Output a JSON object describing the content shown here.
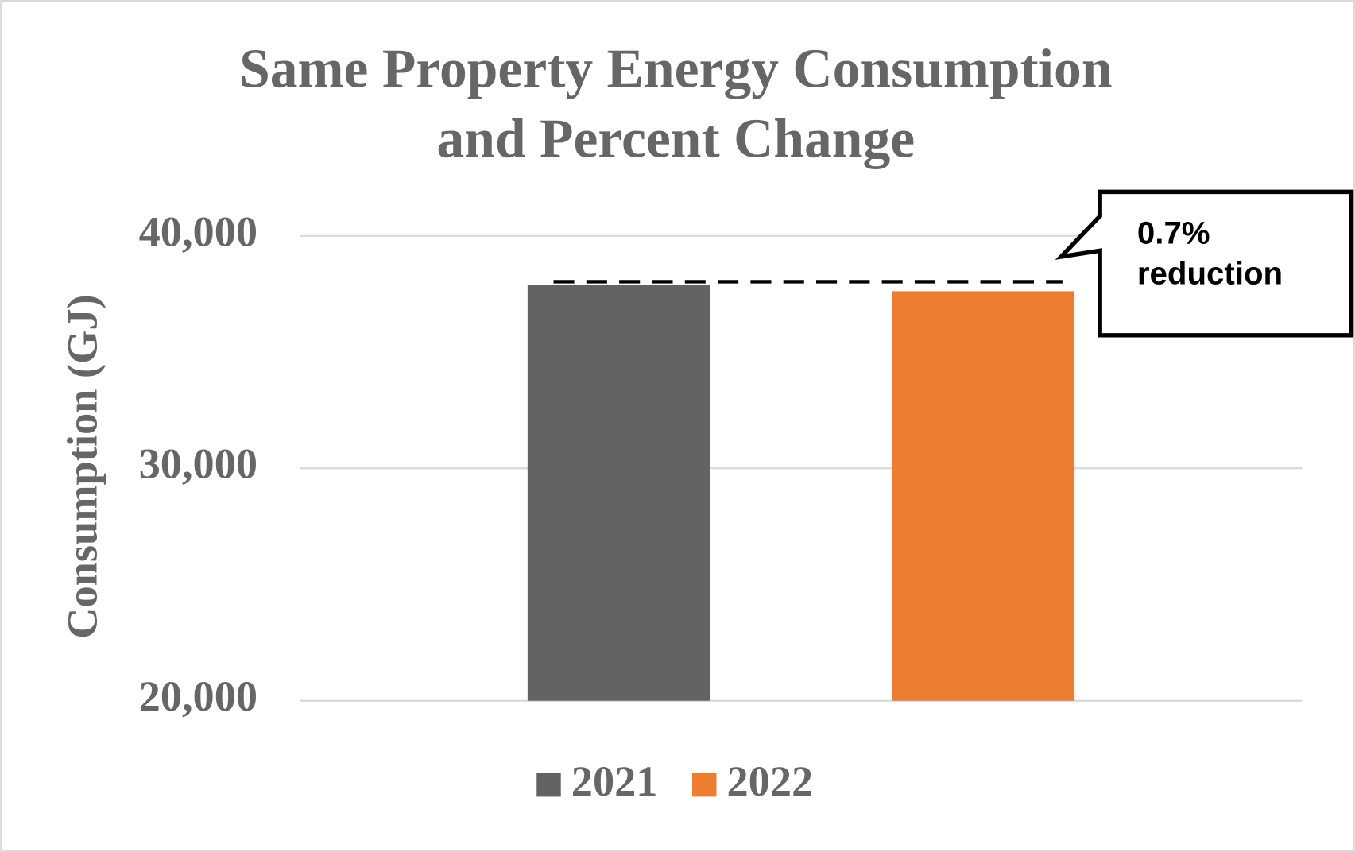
{
  "chart_data": {
    "type": "bar",
    "title": [
      "Same Property Energy Consumption",
      "and Percent Change"
    ],
    "ylabel": "Consumption  (GJ)",
    "categories": [
      null
    ],
    "series": [
      {
        "name": "2021",
        "color": "#636366",
        "values": [
          37880
        ]
      },
      {
        "name": "2022",
        "color": "#ed7d31",
        "values": [
          37620
        ]
      }
    ],
    "ylim": [
      20000,
      40000
    ],
    "yticks": [
      {
        "value": 20000,
        "label": "20,000"
      },
      {
        "value": 30000,
        "label": "30,000"
      },
      {
        "value": 40000,
        "label": "40,000"
      }
    ],
    "grid": true,
    "legend": "bottom",
    "annotation": [
      "0.7%",
      "reduction"
    ]
  }
}
